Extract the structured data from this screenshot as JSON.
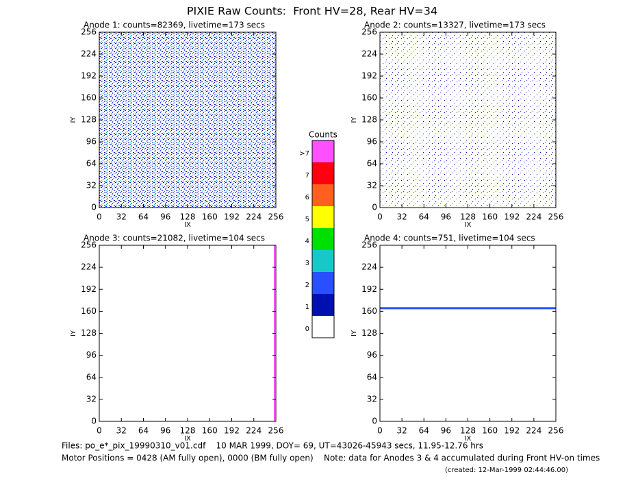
{
  "title": "PIXIE Raw Counts:  Front HV=28, Rear HV=34",
  "chart_data": [
    {
      "type": "heatmap",
      "title": "Anode 1: counts=82369, livetime=173 secs",
      "xlabel": "IX",
      "ylabel": "IY",
      "xlim": [
        0,
        256
      ],
      "ylim": [
        0,
        256
      ],
      "xticks": [
        0,
        32,
        64,
        96,
        128,
        160,
        192,
        224,
        256
      ],
      "yticks": [
        0,
        32,
        64,
        96,
        128,
        160,
        192,
        224,
        256
      ]
    },
    {
      "type": "heatmap",
      "title": "Anode 2: counts=13327, livetime=173 secs",
      "xlabel": "IX",
      "ylabel": "IY",
      "xlim": [
        0,
        256
      ],
      "ylim": [
        0,
        256
      ],
      "xticks": [
        0,
        32,
        64,
        96,
        128,
        160,
        192,
        224,
        256
      ],
      "yticks": [
        0,
        32,
        64,
        96,
        128,
        160,
        192,
        224,
        256
      ]
    },
    {
      "type": "heatmap",
      "title": "Anode 3: counts=21082, livetime=104 secs",
      "xlabel": "IX",
      "ylabel": "IY",
      "xlim": [
        0,
        256
      ],
      "ylim": [
        0,
        256
      ],
      "xticks": [
        0,
        32,
        64,
        96,
        128,
        160,
        192,
        224,
        256
      ],
      "yticks": [
        0,
        32,
        64,
        96,
        128,
        160,
        192,
        224,
        256
      ]
    },
    {
      "type": "heatmap",
      "title": "Anode 4: counts=751, livetime=104 secs",
      "xlabel": "IX",
      "ylabel": "IY",
      "xlim": [
        0,
        256
      ],
      "ylim": [
        0,
        256
      ],
      "xticks": [
        0,
        32,
        64,
        96,
        128,
        160,
        192,
        224,
        256
      ],
      "yticks": [
        0,
        32,
        64,
        96,
        128,
        160,
        192,
        224,
        256
      ]
    }
  ],
  "colorbar": {
    "title": "Counts",
    "labels": [
      "0",
      "1",
      "2",
      "3",
      "4",
      "5",
      "6",
      "7",
      ">7"
    ],
    "colors": [
      "#ffffff",
      "#0010b0",
      "#2850ff",
      "#18c8c8",
      "#00e000",
      "#ffff00",
      "#ff6020",
      "#ff0010",
      "#ff50ff"
    ]
  },
  "footer": [
    "Files: po_e*_pix_19990310_v01.cdf    10 MAR 1999, DOY= 69, UT=43026-45943 secs, 11.95-12.76 hrs",
    "Motor Positions = 0428 (AM fully open), 0000 (BM fully open)    Note: data for Anodes 3 & 4 accumulated during Front HV-on times",
    "(created: 12-Mar-1999 02:44:46.00)"
  ]
}
